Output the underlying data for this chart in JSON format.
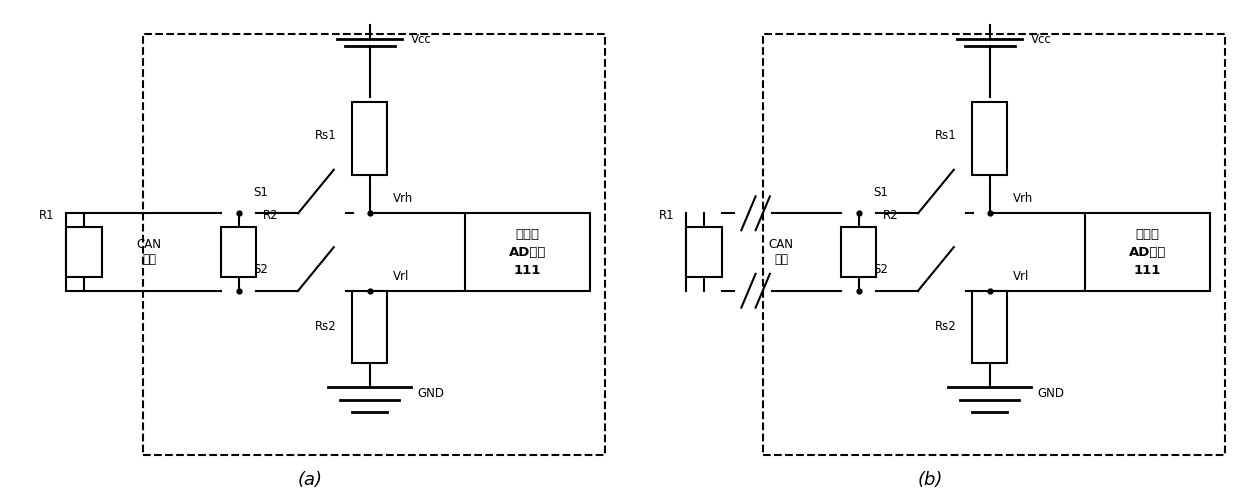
{
  "bg_color": "#ffffff",
  "line_color": "#000000",
  "label_a": "(a)",
  "label_b": "(b)",
  "mcu_text_lines": [
    "单片机",
    "AD模块",
    "111"
  ],
  "can_text": "CAN\n总线",
  "vcc_label": "Vcc",
  "gnd_label": "GND",
  "r1_label": "R1",
  "r2_label": "R2",
  "rs1_label": "Rs1",
  "rs2_label": "Rs2",
  "s1_label": "S1",
  "s2_label": "S2",
  "vrh_label": "Vrh",
  "vrl_label": "Vrl"
}
